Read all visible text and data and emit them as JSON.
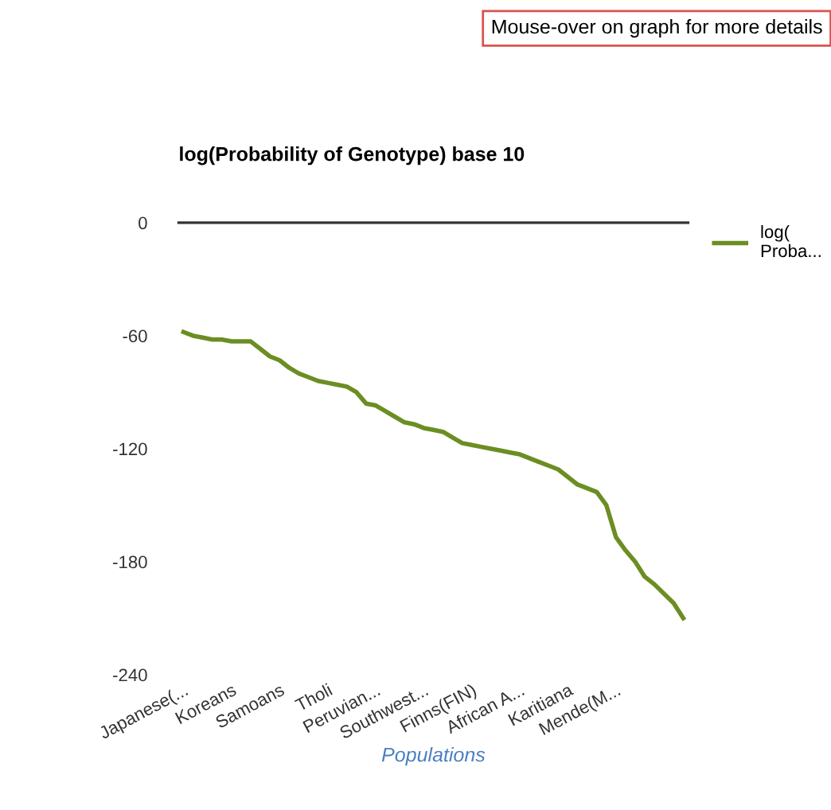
{
  "chart_data": {
    "type": "line",
    "title": "log(Probability of Genotype) base 10",
    "xlabel": "Populations",
    "annotations": [
      "Mouse-over on graph for more details"
    ],
    "categories": [
      "Japanese(...",
      null,
      null,
      null,
      null,
      "Koreans",
      null,
      null,
      null,
      null,
      "Samoans",
      null,
      null,
      null,
      null,
      "Tholi",
      null,
      null,
      null,
      null,
      "Peruvian...",
      null,
      null,
      null,
      null,
      "Southwest...",
      null,
      null,
      null,
      null,
      "Finns(FIN)",
      null,
      null,
      null,
      null,
      "African A...",
      null,
      null,
      null,
      null,
      "Karitiana",
      null,
      null,
      null,
      null,
      "Mende(M...",
      null,
      null,
      null,
      null,
      null,
      null,
      null
    ],
    "series": [
      {
        "name": "log( Proba...",
        "color": "#6b8e23",
        "values": [
          -58,
          -60,
          -61,
          -62,
          -62,
          -63,
          -63,
          -63,
          -67,
          -71,
          -73,
          -77,
          -80,
          -82,
          -84,
          -85,
          -86,
          -87,
          -90,
          -96,
          -97,
          -100,
          -103,
          -106,
          -107,
          -109,
          -110,
          -111,
          -114,
          -117,
          -118,
          -119,
          -120,
          -121,
          -122,
          -123,
          -125,
          -127,
          -129,
          -131,
          -135,
          -139,
          -141,
          -143,
          -150,
          -167,
          -174,
          -180,
          -188,
          -192,
          -197,
          -202,
          -210
        ]
      }
    ],
    "ylim": [
      -240,
      0
    ],
    "yticks": [
      0,
      -60,
      -120,
      -180,
      -240
    ],
    "grid": false,
    "legend": "top right",
    "marker": "none",
    "line_style": "solid"
  }
}
